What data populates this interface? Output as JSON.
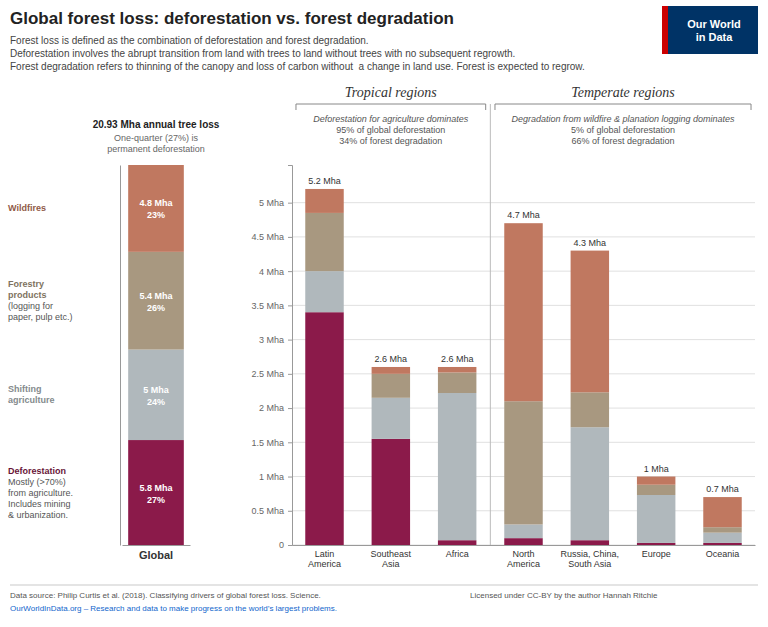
{
  "chart_data": [
    {
      "type": "bar",
      "stacked": true,
      "data_labels": true,
      "tick_labels": "x",
      "title": "Global forest loss: deforestation vs. forest degradation",
      "subtitle": [
        "Forest loss is defined as the combination of deforestation and forest degradation.",
        "Deforestation involves the abrupt transition from land with trees to land without trees with no subsequent regrowth.",
        "Forest degradation refers to thinning of the canopy and loss of carbon without  a change in land use. Forest is expected to regrow."
      ],
      "logo": "Our World\nin Data",
      "logo_colors": [
        "#003366",
        "#CC0000"
      ],
      "annotations": [
        "20.93 Mha annual tree loss",
        "One-quarter (27%) is\npermanent deforestation"
      ],
      "categories": [
        "Global"
      ],
      "series": [
        {
          "name": "Deforestation",
          "description": "Mostly (>70%)\nfrom agriculture.\nIncludes mining\n& urbanization.",
          "color": "#8B1A4A",
          "values": [
            5.8
          ],
          "value_labels": [
            "5.8 Mha"
          ],
          "share_labels": [
            "27%"
          ]
        },
        {
          "name": "Shifting\nagriculture",
          "color": "#B0B8BC",
          "values": [
            5.0
          ],
          "value_labels": [
            "5 Mha"
          ],
          "share_labels": [
            "24%"
          ]
        },
        {
          "name": "Forestry\nproducts",
          "description": "(logging for\npaper, pulp etc.)",
          "color": "#A89880",
          "values": [
            5.4
          ],
          "value_labels": [
            "5.4 Mha"
          ],
          "share_labels": [
            "26%"
          ]
        },
        {
          "name": "Wildfires",
          "color": "#C07860",
          "values": [
            4.8
          ],
          "value_labels": [
            "4.8 Mha"
          ],
          "share_labels": [
            "23%"
          ]
        }
      ],
      "ylim": [
        0,
        21.0
      ],
      "footer": [
        "Data source: Philip Curtis et al. (2018). Classifying drivers of global forest loss. Science.",
        "OurWorldInData.org – Research and data to make progress on the world’s largest problems.",
        "Licensed under CC-BY by the author Hannah Ritchie"
      ]
    },
    {
      "type": "bar",
      "stacked": true,
      "grid": true,
      "categories": [
        "Latin\nAmerica",
        "Southeast\nAsia",
        "Africa",
        "North\nAmerica",
        "Russia, China,\nSouth Asia",
        "Europe",
        "Oceania"
      ],
      "series": [
        {
          "color": "#8B1A4A",
          "values": [
            3.4,
            1.55,
            0.07,
            0.1,
            0.07,
            0.03,
            0.03
          ]
        },
        {
          "color": "#B0B8BC",
          "values": [
            0.6,
            0.6,
            2.15,
            0.2,
            1.65,
            0.7,
            0.15
          ]
        },
        {
          "color": "#A89880",
          "values": [
            0.85,
            0.35,
            0.3,
            1.8,
            0.51,
            0.15,
            0.08
          ]
        },
        {
          "color": "#C07860",
          "values": [
            0.35,
            0.1,
            0.08,
            2.6,
            2.07,
            0.12,
            0.44
          ]
        }
      ],
      "totals": [
        5.2,
        2.6,
        2.6,
        4.7,
        4.3,
        1.0,
        0.7
      ],
      "total_labels": [
        "5.2 Mha",
        "2.6 Mha",
        "2.6 Mha",
        "4.7 Mha",
        "4.3 Mha",
        "1 Mha",
        "0.7 Mha"
      ],
      "ylim": [
        0,
        5.55
      ],
      "yticks": [
        0,
        {
          "value": 0.5,
          "label": "0.5 Mha"
        },
        {
          "value": 1.0,
          "label": "1 Mha"
        },
        {
          "value": 1.5,
          "label": "1.5 Mha"
        },
        {
          "value": 2.0,
          "label": "2 Mha"
        },
        {
          "value": 2.5,
          "label": "2.5 Mha"
        },
        {
          "value": 3.0,
          "label": "3 Mha"
        },
        {
          "value": 3.5,
          "label": "3.5 Mha"
        },
        {
          "value": 4.0,
          "label": "4 Mha"
        },
        {
          "value": 4.5,
          "label": "4.5 Mha"
        },
        {
          "value": 5.0,
          "label": "5 Mha"
        }
      ],
      "groups": [
        {
          "name": "Tropical regions",
          "categories": [
            "Latin\nAmerica",
            "Southeast\nAsia",
            "Africa"
          ],
          "notes": [
            "Deforestation for agriculture dominates",
            "95% of global deforestation",
            "34% of forest degradation"
          ]
        },
        {
          "name": "Temperate regions",
          "categories": [
            "North\nAmerica",
            "Russia, China,\nSouth Asia",
            "Europe",
            "Oceania"
          ],
          "notes": [
            "Degradation from wildfire & planation logging dominates",
            "5% of global deforestation",
            "66% of forest degradation"
          ]
        }
      ]
    }
  ]
}
